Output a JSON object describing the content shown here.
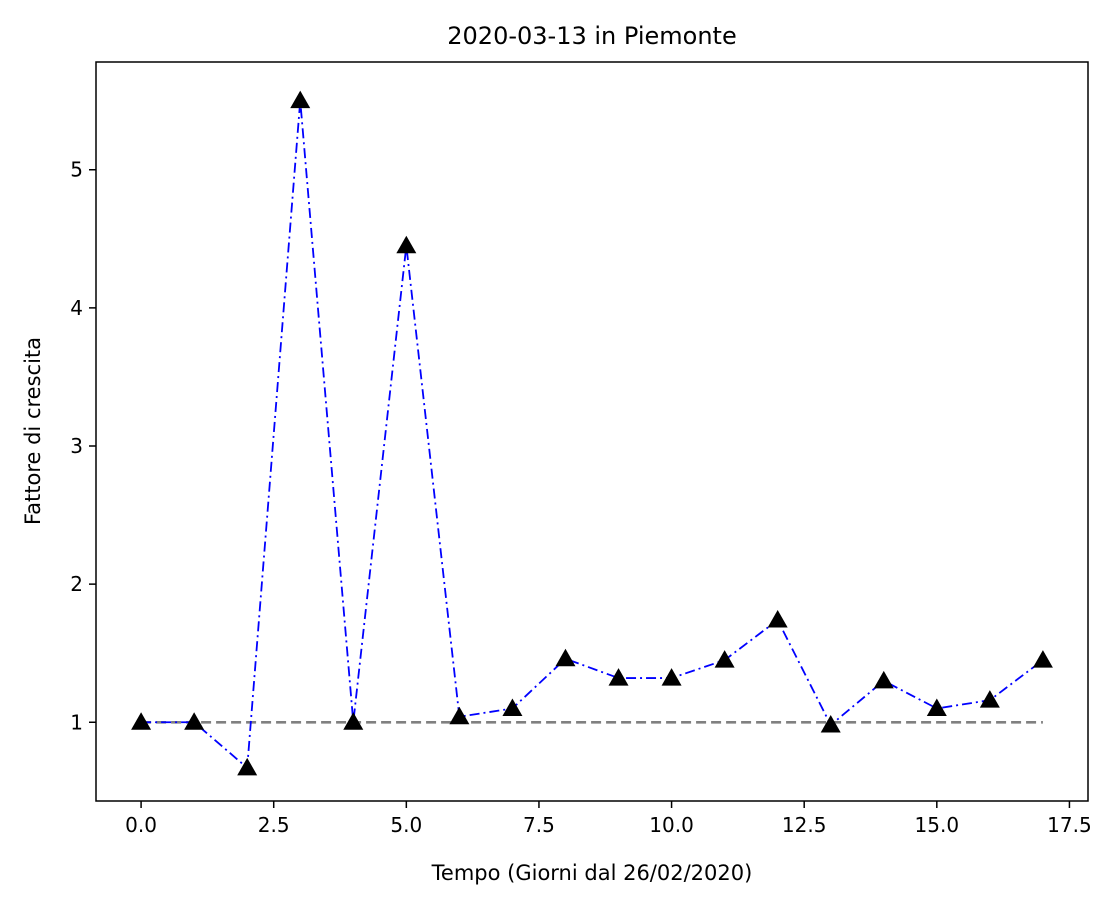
{
  "chart_data": {
    "type": "line",
    "title": "2020-03-13 in Piemonte",
    "xlabel": "Tempo (Giorni dal 26/02/2020)",
    "ylabel": "Fattore di crescita",
    "xlim": [
      -0.85,
      17.85
    ],
    "ylim": [
      0.43,
      5.78
    ],
    "x_ticks": [
      0.0,
      2.5,
      5.0,
      7.5,
      10.0,
      12.5,
      15.0,
      17.5
    ],
    "x_tick_labels": [
      "0.0",
      "2.5",
      "5.0",
      "7.5",
      "10.0",
      "12.5",
      "15.0",
      "17.5"
    ],
    "y_ticks": [
      1,
      2,
      3,
      4,
      5
    ],
    "y_tick_labels": [
      "1",
      "2",
      "3",
      "4",
      "5"
    ],
    "grid": false,
    "series": [
      {
        "style": "dash-dot line with triangle markers",
        "line_color": "#0000ff",
        "marker_color": "#000000",
        "x": [
          0,
          1,
          2,
          3,
          4,
          5,
          6,
          7,
          8,
          9,
          10,
          11,
          12,
          13,
          14,
          15,
          16,
          17
        ],
        "y": [
          1.0,
          1.0,
          0.67,
          5.5,
          1.0,
          4.45,
          1.04,
          1.1,
          1.46,
          1.32,
          1.32,
          1.45,
          1.74,
          0.98,
          1.3,
          1.1,
          1.16,
          1.45
        ]
      },
      {
        "style": "dashed reference line",
        "line_color": "#808080",
        "x": [
          0,
          17
        ],
        "y": [
          1.0,
          1.0
        ]
      }
    ]
  }
}
